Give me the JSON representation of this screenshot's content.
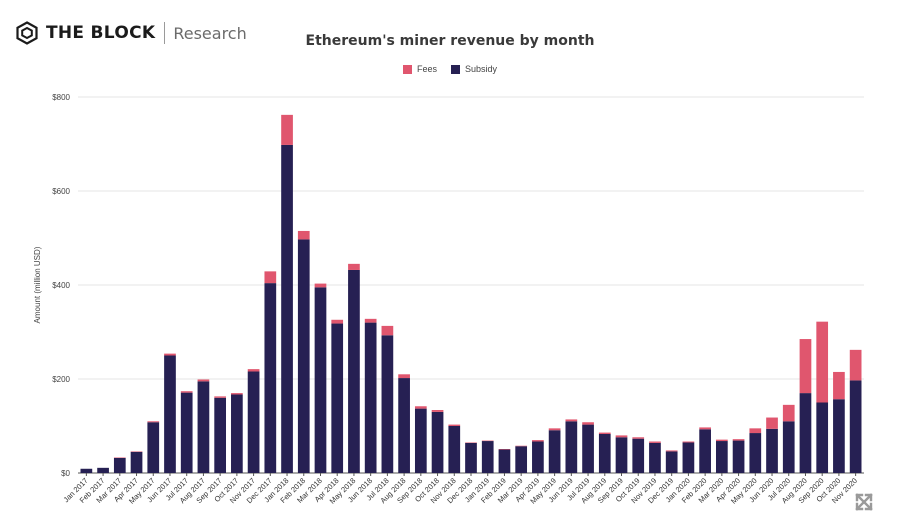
{
  "header": {
    "brand_name": "THE BLOCK",
    "brand_sub": "Research"
  },
  "colors": {
    "fees": "#e0566e",
    "subsidy": "#262053",
    "grid": "#e6e6e6",
    "axis": "#555555"
  },
  "icons": {
    "logo": "the-block-hexagon-logo",
    "expand": "expand-icon"
  },
  "chart_data": {
    "type": "bar",
    "stacked": true,
    "title": "Ethereum's miner revenue by month",
    "xlabel": "",
    "ylabel": "Amount (million USD)",
    "ylim": [
      0,
      800
    ],
    "yticks": [
      0,
      200,
      400,
      600,
      800
    ],
    "ytick_labels": [
      "$0",
      "$200",
      "$400",
      "$600",
      "$800"
    ],
    "grid": true,
    "legend_position": "top-center",
    "categories": [
      "Jan 2017",
      "Feb 2017",
      "Mar 2017",
      "Apr 2017",
      "May 2017",
      "Jun 2017",
      "Jul 2017",
      "Aug 2017",
      "Sep 2017",
      "Oct 2017",
      "Nov 2017",
      "Dec 2017",
      "Jan 2018",
      "Feb 2018",
      "Mar 2018",
      "Apr 2018",
      "May 2018",
      "Jun 2018",
      "Jul 2018",
      "Aug 2018",
      "Sep 2018",
      "Oct 2018",
      "Nov 2018",
      "Dec 2018",
      "Jan 2019",
      "Feb 2019",
      "Mar 2019",
      "Apr 2019",
      "May 2019",
      "Jun 2019",
      "Jul 2019",
      "Aug 2019",
      "Sep 2019",
      "Oct 2019",
      "Nov 2019",
      "Dec 2019",
      "Jan 2020",
      "Feb 2020",
      "Mar 2020",
      "Apr 2020",
      "May 2020",
      "Jun 2020",
      "Jul 2020",
      "Aug 2020",
      "Sep 2020",
      "Oct 2020",
      "Nov 2020"
    ],
    "series": [
      {
        "name": "Subsidy",
        "values": [
          9,
          11,
          32,
          45,
          108,
          250,
          171,
          195,
          160,
          167,
          216,
          404,
          698,
          497,
          395,
          318,
          432,
          320,
          293,
          202,
          137,
          130,
          100,
          64,
          68,
          50,
          57,
          67,
          91,
          110,
          103,
          83,
          76,
          73,
          64,
          46,
          65,
          93,
          68,
          69,
          85,
          94,
          110,
          170,
          150,
          157,
          197
        ]
      },
      {
        "name": "Fees",
        "values": [
          0,
          0,
          1,
          1,
          2,
          4,
          3,
          4,
          3,
          3,
          5,
          25,
          64,
          18,
          8,
          8,
          13,
          8,
          20,
          8,
          5,
          4,
          3,
          1,
          1,
          1,
          1,
          3,
          4,
          4,
          5,
          3,
          4,
          3,
          3,
          2,
          2,
          4,
          3,
          3,
          10,
          24,
          35,
          115,
          172,
          58,
          65
        ]
      }
    ]
  }
}
